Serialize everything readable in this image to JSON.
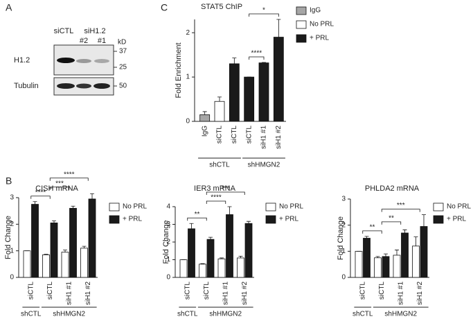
{
  "panel_labels": [
    "A",
    "B",
    "C"
  ],
  "blot": {
    "control": "siCTL",
    "treatment": "siH1.2",
    "lanes": [
      "#2",
      "#1"
    ],
    "unit": "kD",
    "rows": [
      {
        "label": "H1.2",
        "markers": [
          37,
          25
        ]
      },
      {
        "label": "Tubulin",
        "markers": [
          50
        ]
      }
    ]
  },
  "chart_data": [
    {
      "type": "bar",
      "title": "STAT5 ChIP",
      "ylabel": "Fold Enrichment",
      "categories": [
        "IgG",
        "siCTL",
        "siCTL",
        "siCTL",
        "siH1 #1",
        "siH1 #2"
      ],
      "groups": [
        {
          "name": "shCTL",
          "size": 3
        },
        {
          "name": "shHMGN2",
          "size": 3
        }
      ],
      "series": [
        {
          "name": "IgG",
          "color": "#a6a6a6",
          "values": [
            0.15,
            null,
            null,
            null,
            null,
            null
          ],
          "errors": [
            0.07,
            null,
            null,
            null,
            null,
            null
          ]
        },
        {
          "name": "No PRL",
          "color": "#ffffff",
          "values": [
            null,
            0.45,
            null,
            null,
            null,
            null
          ],
          "errors": [
            null,
            0.1,
            null,
            null,
            null,
            null
          ]
        },
        {
          "name": "+ PRL",
          "color": "#1a1a1a",
          "values": [
            null,
            null,
            1.3,
            1.0,
            1.32,
            1.9
          ],
          "errors": [
            null,
            null,
            0.13,
            0,
            0.01,
            0.4
          ]
        }
      ],
      "ylim": [
        0,
        2.3
      ],
      "yticks": [
        0,
        1,
        2
      ],
      "significance": [
        {
          "from": 3,
          "to": 4,
          "label": "****"
        },
        {
          "from": 3,
          "to": 5,
          "label": "*"
        }
      ]
    },
    {
      "type": "bar",
      "title": "CISH mRNA",
      "ylabel": "Fold Change",
      "categories": [
        "siCTL",
        "siCTL",
        "siH1 #1",
        "siH1 #2"
      ],
      "groups": [
        {
          "name": "shCTL",
          "size": 1
        },
        {
          "name": "shHMGN2",
          "size": 3
        }
      ],
      "series": [
        {
          "name": "No PRL",
          "color": "#ffffff",
          "values": [
            1.0,
            0.85,
            0.95,
            1.1
          ],
          "errors": [
            0,
            0.02,
            0.08,
            0.07
          ]
        },
        {
          "name": "+ PRL",
          "color": "#1a1a1a",
          "values": [
            2.75,
            2.05,
            2.6,
            2.95
          ],
          "errors": [
            0.1,
            0.08,
            0.08,
            0.2
          ]
        }
      ],
      "ylim": [
        0,
        3
      ],
      "yticks": [
        0,
        1,
        2,
        3
      ],
      "significance": [
        {
          "from": 0,
          "to": 1,
          "label": "****"
        },
        {
          "from": 1,
          "to": 2,
          "label": "***"
        },
        {
          "from": 1,
          "to": 3,
          "label": "****"
        }
      ]
    },
    {
      "type": "bar",
      "title": "IER3 mRNA",
      "ylabel": "Fold Change",
      "categories": [
        "siCTL",
        "siCTL",
        "siH1 #1",
        "siH1 #2"
      ],
      "groups": [
        {
          "name": "shCTL",
          "size": 1
        },
        {
          "name": "shHMGN2",
          "size": 3
        }
      ],
      "series": [
        {
          "name": "No PRL",
          "color": "#ffffff",
          "values": [
            1.0,
            0.75,
            1.05,
            1.1
          ],
          "errors": [
            0,
            0.03,
            0.05,
            0.1
          ]
        },
        {
          "name": "+ PRL",
          "color": "#1a1a1a",
          "values": [
            2.75,
            2.15,
            3.55,
            3.05
          ],
          "errors": [
            0.3,
            0.12,
            0.45,
            0.12
          ]
        }
      ],
      "ylim": [
        0,
        4
      ],
      "yticks": [
        0,
        1,
        2,
        3,
        4
      ],
      "significance": [
        {
          "from": 0,
          "to": 1,
          "label": "**"
        },
        {
          "from": 1,
          "to": 2,
          "label": "****"
        },
        {
          "from": 1,
          "to": 3,
          "label": "***"
        }
      ]
    },
    {
      "type": "bar",
      "title": "PHLDA2 mRNA",
      "ylabel": "Fold Change",
      "categories": [
        "siCTL",
        "siCTL",
        "siH1 #1",
        "siH1 #2"
      ],
      "groups": [
        {
          "name": "shCTL",
          "size": 1
        },
        {
          "name": "shHMGN2",
          "size": 3
        }
      ],
      "series": [
        {
          "name": "No PRL",
          "color": "#ffffff",
          "values": [
            1.0,
            0.75,
            0.85,
            1.2
          ],
          "errors": [
            0,
            0.05,
            0.2,
            0.35
          ]
        },
        {
          "name": "+ PRL",
          "color": "#1a1a1a",
          "values": [
            1.5,
            0.8,
            1.7,
            1.95
          ],
          "errors": [
            0.07,
            0.1,
            0.12,
            0.45
          ]
        }
      ],
      "ylim": [
        0,
        3
      ],
      "yticks": [
        0,
        1,
        2,
        3
      ],
      "significance": [
        {
          "from": 0,
          "to": 1,
          "label": "**"
        },
        {
          "from": 1,
          "to": 2,
          "label": "**"
        },
        {
          "from": 1,
          "to": 3,
          "label": "***"
        }
      ]
    }
  ]
}
